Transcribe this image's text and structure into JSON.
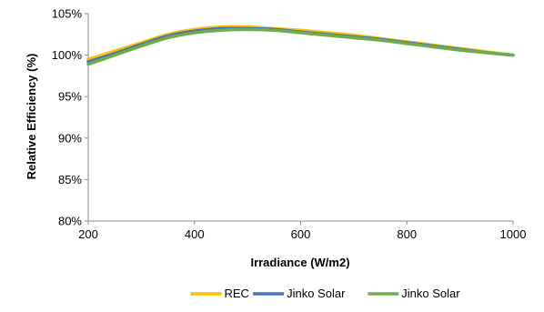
{
  "chart_data": {
    "type": "line",
    "xlabel": "Irradiance (W/m2)",
    "ylabel": "Relative Efficiency (%)",
    "xlim": [
      200,
      1000
    ],
    "ylim": [
      80,
      105
    ],
    "x_ticks": [
      200,
      400,
      600,
      800,
      1000
    ],
    "y_ticks": [
      80,
      85,
      90,
      95,
      100,
      105
    ],
    "x_tick_labels": [
      "200",
      "400",
      "600",
      "800",
      "1000"
    ],
    "y_tick_labels": [
      "80%",
      "85%",
      "90%",
      "95%",
      "100%",
      "105%"
    ],
    "grid": false,
    "legend_position": "bottom",
    "series": [
      {
        "name": "REC",
        "color": "#FFC000",
        "x": [
          200,
          250,
          300,
          350,
          400,
          450,
          500,
          550,
          600,
          650,
          700,
          750,
          800,
          850,
          900,
          950,
          1000
        ],
        "y": [
          99.5,
          100.5,
          101.5,
          102.5,
          103.1,
          103.4,
          103.4,
          103.2,
          103.0,
          102.7,
          102.4,
          102.0,
          101.6,
          101.2,
          100.8,
          100.4,
          100.0
        ]
      },
      {
        "name": "Jinko Solar",
        "color": "#4472C4",
        "x": [
          200,
          250,
          300,
          350,
          400,
          450,
          500,
          550,
          600,
          650,
          700,
          750,
          800,
          850,
          900,
          950,
          1000
        ],
        "y": [
          99.2,
          100.2,
          101.3,
          102.3,
          102.9,
          103.2,
          103.2,
          103.1,
          102.8,
          102.5,
          102.2,
          101.9,
          101.5,
          101.1,
          100.7,
          100.3,
          100.0
        ]
      },
      {
        "name": "Jinko Solar",
        "color": "#70AD47",
        "x": [
          200,
          250,
          300,
          350,
          400,
          450,
          500,
          550,
          600,
          650,
          700,
          750,
          800,
          850,
          900,
          950,
          1000
        ],
        "y": [
          98.9,
          100.0,
          101.1,
          102.1,
          102.7,
          103.0,
          103.1,
          103.0,
          102.7,
          102.4,
          102.1,
          101.8,
          101.4,
          101.0,
          100.6,
          100.3,
          100.0
        ]
      }
    ]
  }
}
